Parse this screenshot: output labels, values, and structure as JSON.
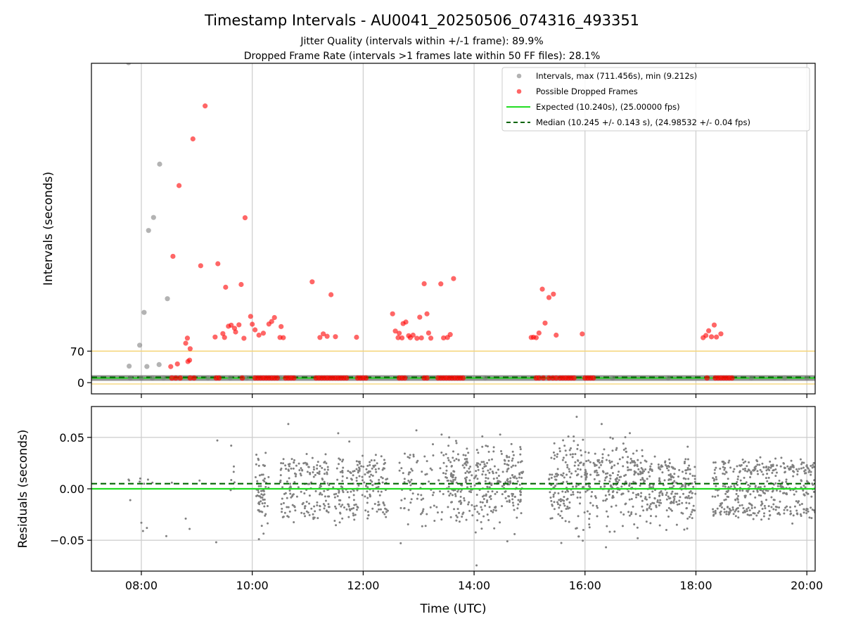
{
  "chart_data": [
    {
      "type": "scatter",
      "title": "Timestamp Intervals - AU0041_20250506_074316_493351",
      "subtitle_lines": [
        "Jitter Quality (intervals within +/-1 frame): 89.9%",
        "Dropped Frame Rate (intervals >1 frames late within 50 FF files): 28.1%"
      ],
      "xlabel": "",
      "ylabel": "Intervals (seconds)",
      "x_unit": "time (UTC, hours)",
      "xlim": [
        7.1,
        20.15
      ],
      "ylim": [
        -25,
        710
      ],
      "yticks": [
        0,
        70
      ],
      "ytick_labels": [
        "0",
        "70"
      ],
      "reference_lines": [
        {
          "name": "expected",
          "value": 10.24,
          "color": "#22dd22",
          "style": "solid"
        },
        {
          "name": "median",
          "value": 10.245,
          "color": "#006400",
          "style": "dashed"
        },
        {
          "name": "threshold_upper",
          "value": 70,
          "color": "#f5d57a",
          "style": "solid"
        },
        {
          "name": "threshold_lower",
          "value": -3,
          "color": "#f5d57a",
          "style": "solid"
        }
      ],
      "legend": {
        "placement": "top-right",
        "entries": [
          {
            "label": "Intervals, max (711.456s), min (9.212s)",
            "kind": "dot",
            "color": "#808080"
          },
          {
            "label": "Possible Dropped Frames",
            "kind": "dot",
            "color": "#ff0000"
          },
          {
            "label": "Expected (10.240s), (25.00000 fps)",
            "kind": "line",
            "color": "#22dd22"
          },
          {
            "label": "Median (10.245 +/- 0.143 s), (24.98532 +/- 0.04 fps)",
            "kind": "dashed",
            "color": "#006400"
          }
        ]
      },
      "series": [
        {
          "name": "Intervals, max (711.456s), min (9.212s)",
          "color": "#808080",
          "points": [
            [
              7.77,
              711.4
            ],
            [
              7.78,
              36.7
            ],
            [
              7.97,
              83.2
            ],
            [
              8.05,
              156.1
            ],
            [
              8.1,
              35.8
            ],
            [
              8.13,
              338.3
            ],
            [
              8.22,
              367.2
            ],
            [
              8.33,
              485.8
            ],
            [
              8.47,
              186.6
            ],
            [
              8.32,
              40.1
            ],
            [
              7.8,
              10.2
            ],
            [
              8.0,
              10.2
            ],
            [
              8.2,
              10.2
            ],
            [
              8.4,
              10.2
            ],
            [
              9.2,
              10.2
            ],
            [
              9.6,
              10.2
            ],
            [
              9.9,
              10.2
            ],
            [
              10.5,
              10.2
            ],
            [
              12.8,
              10.2
            ],
            [
              14.2,
              10.2
            ],
            [
              16.5,
              10.2
            ],
            [
              17.5,
              10.2
            ],
            [
              19.0,
              10.2
            ],
            [
              19.6,
              10.2
            ],
            [
              20.0,
              10.2
            ]
          ]
        },
        {
          "name": "Possible Dropped Frames",
          "color": "#ff0000",
          "points": [
            [
              8.53,
              35.6
            ],
            [
              8.57,
              280.8
            ],
            [
              8.65,
              41.5
            ],
            [
              8.68,
              438.1
            ],
            [
              8.8,
              87.6
            ],
            [
              8.83,
              98.9
            ],
            [
              8.84,
              46.9
            ],
            [
              8.87,
              50.0
            ],
            [
              8.88,
              75.4
            ],
            [
              8.93,
              541.9
            ],
            [
              9.07,
              259.9
            ],
            [
              9.15,
              615.2
            ],
            [
              9.33,
              101.4
            ],
            [
              9.38,
              264.3
            ],
            [
              9.47,
              109.0
            ],
            [
              9.5,
              100.4
            ],
            [
              9.52,
              212.1
            ],
            [
              9.57,
              125.3
            ],
            [
              9.62,
              127.8
            ],
            [
              9.68,
              120.9
            ],
            [
              9.7,
              112.6
            ],
            [
              9.76,
              128.5
            ],
            [
              9.8,
              218.2
            ],
            [
              9.85,
              98.6
            ],
            [
              9.87,
              366.6
            ],
            [
              9.97,
              147.2
            ],
            [
              10.0,
              129.8
            ],
            [
              10.05,
              117.3
            ],
            [
              10.12,
              105.6
            ],
            [
              10.2,
              109.9
            ],
            [
              10.3,
              130.2
            ],
            [
              10.35,
              136.0
            ],
            [
              10.4,
              144.7
            ],
            [
              10.5,
              100.4
            ],
            [
              10.52,
              124.6
            ],
            [
              10.56,
              99.9
            ],
            [
              11.08,
              224.1
            ],
            [
              11.22,
              100.4
            ],
            [
              11.28,
              108.4
            ],
            [
              11.35,
              103.0
            ],
            [
              11.42,
              195.5
            ],
            [
              11.5,
              102.1
            ],
            [
              11.88,
              100.9
            ],
            [
              12.53,
              153.0
            ],
            [
              12.58,
              114.7
            ],
            [
              12.63,
              99.9
            ],
            [
              12.65,
              109.8
            ],
            [
              12.7,
              99.4
            ],
            [
              12.72,
              131.3
            ],
            [
              12.77,
              134.7
            ],
            [
              12.82,
              104.3
            ],
            [
              12.85,
              99.9
            ],
            [
              12.9,
              105.6
            ],
            [
              12.97,
              98.6
            ],
            [
              13.02,
              145.5
            ],
            [
              13.05,
              99.4
            ],
            [
              13.1,
              219.9
            ],
            [
              13.15,
              152.9
            ],
            [
              13.18,
              110.3
            ],
            [
              13.22,
              98.9
            ],
            [
              13.4,
              219.5
            ],
            [
              13.45,
              99.4
            ],
            [
              13.52,
              100.4
            ],
            [
              13.57,
              106.9
            ],
            [
              13.63,
              231.3
            ],
            [
              15.03,
              100.4
            ],
            [
              15.07,
              100.9
            ],
            [
              15.12,
              99.9
            ],
            [
              15.17,
              110.3
            ],
            [
              15.23,
              207.8
            ],
            [
              15.28,
              132.4
            ],
            [
              15.35,
              189.2
            ],
            [
              15.43,
              196.8
            ],
            [
              15.48,
              105.6
            ],
            [
              15.95,
              108.2
            ],
            [
              18.13,
              99.9
            ],
            [
              18.18,
              104.8
            ],
            [
              18.23,
              115.3
            ],
            [
              18.28,
              101.9
            ],
            [
              18.33,
              128.1
            ],
            [
              18.37,
              101.4
            ],
            [
              18.45,
              108.4
            ]
          ],
          "baseline_x": [
            8.55,
            8.62,
            8.7,
            8.88,
            8.95,
            9.35,
            9.4,
            9.82,
            10.05,
            10.1,
            10.15,
            10.2,
            10.25,
            10.3,
            10.35,
            10.4,
            10.45,
            10.6,
            10.65,
            10.7,
            10.75,
            11.15,
            11.2,
            11.25,
            11.3,
            11.35,
            11.4,
            11.45,
            11.5,
            11.55,
            11.6,
            11.65,
            11.7,
            11.9,
            11.95,
            12.0,
            12.05,
            12.65,
            12.7,
            12.75,
            13.1,
            13.15,
            13.35,
            13.4,
            13.45,
            13.5,
            13.55,
            13.6,
            13.65,
            13.7,
            13.75,
            13.8,
            15.12,
            15.17,
            15.25,
            15.35,
            15.42,
            15.48,
            15.55,
            15.6,
            15.65,
            15.7,
            15.75,
            15.8,
            16.0,
            16.05,
            16.1,
            16.15,
            18.2,
            18.35,
            18.4,
            18.45,
            18.5,
            18.55,
            18.6,
            18.65
          ],
          "baseline_y": 10.24
        }
      ]
    },
    {
      "type": "scatter",
      "xlabel": "Time (UTC)",
      "ylabel": "Residuals (seconds)",
      "xlim": [
        7.1,
        20.15
      ],
      "ylim": [
        -0.08,
        0.08
      ],
      "xticks": [
        8,
        10,
        12,
        14,
        16,
        18,
        20
      ],
      "xtick_labels": [
        "08:00",
        "10:00",
        "12:00",
        "14:00",
        "16:00",
        "18:00",
        "20:00"
      ],
      "yticks": [
        -0.05,
        0.0,
        0.05
      ],
      "ytick_labels": [
        "−0.05",
        "0.00",
        "0.05"
      ],
      "reference_lines": [
        {
          "name": "expected",
          "value": 0.0,
          "color": "#22dd22",
          "style": "solid"
        },
        {
          "name": "median",
          "value": 0.005,
          "color": "#006400",
          "style": "dashed"
        }
      ],
      "series": [
        {
          "name": "Residuals",
          "color": "#808080",
          "points": [
            [
              7.77,
              0.009
            ],
            [
              7.78,
              0.008
            ],
            [
              7.8,
              -0.011
            ],
            [
              7.97,
              0.007
            ],
            [
              7.98,
              0.01
            ],
            [
              8.0,
              -0.033
            ],
            [
              8.03,
              -0.041
            ],
            [
              8.05,
              0.005
            ],
            [
              8.1,
              -0.038
            ],
            [
              8.12,
              0.009
            ],
            [
              8.2,
              0.006
            ],
            [
              8.45,
              -0.046
            ],
            [
              8.55,
              0.006
            ],
            [
              8.8,
              -0.029
            ],
            [
              8.87,
              -0.039
            ],
            [
              9.05,
              0.008
            ],
            [
              9.35,
              -0.052
            ],
            [
              9.37,
              0.047
            ],
            [
              9.62,
              0.042
            ],
            [
              10.12,
              -0.049
            ],
            [
              10.65,
              0.063
            ],
            [
              11.55,
              0.054
            ],
            [
              15.85,
              0.07
            ],
            [
              15.97,
              -0.04
            ],
            [
              16.3,
              0.063
            ],
            [
              16.95,
              -0.048
            ],
            [
              17.85,
              -0.029
            ],
            [
              14.73,
              -0.044
            ],
            [
              11.75,
              0.046
            ],
            [
              13.55,
              0.05
            ]
          ],
          "clusters": [
            {
              "x_range": [
                9.6,
                9.7
              ],
              "centers": [
                0.005
              ],
              "spread": 0.012,
              "count": 6
            },
            {
              "x_range": [
                10.05,
                10.3
              ],
              "centers": [
                0.02,
                0.0,
                -0.02
              ],
              "spread": 0.009,
              "count": 60
            },
            {
              "x_range": [
                10.5,
                11.4
              ],
              "centers": [
                0.02,
                0.0,
                -0.02
              ],
              "spread": 0.006,
              "count": 170
            },
            {
              "x_range": [
                11.45,
                12.45
              ],
              "centers": [
                0.019,
                0.0,
                -0.02
              ],
              "spread": 0.006,
              "count": 190
            },
            {
              "x_range": [
                12.65,
                13.0
              ],
              "centers": [
                0.003
              ],
              "spread": 0.022,
              "count": 40
            },
            {
              "x_range": [
                13.0,
                13.5
              ],
              "centers": [
                0.005
              ],
              "spread": 0.02,
              "count": 45
            },
            {
              "x_range": [
                13.5,
                14.9
              ],
              "centers": [
                0.006
              ],
              "spread": 0.02,
              "count": 320
            },
            {
              "x_range": [
                15.35,
                17.0
              ],
              "centers": [
                0.006
              ],
              "spread": 0.02,
              "count": 380
            },
            {
              "x_range": [
                17.0,
                18.0
              ],
              "centers": [
                0.01,
                -0.01
              ],
              "spread": 0.012,
              "count": 230
            },
            {
              "x_range": [
                18.3,
                20.15
              ],
              "centers": [
                0.02,
                0.0,
                -0.021
              ],
              "spread": 0.005,
              "count": 420
            }
          ]
        }
      ]
    }
  ]
}
